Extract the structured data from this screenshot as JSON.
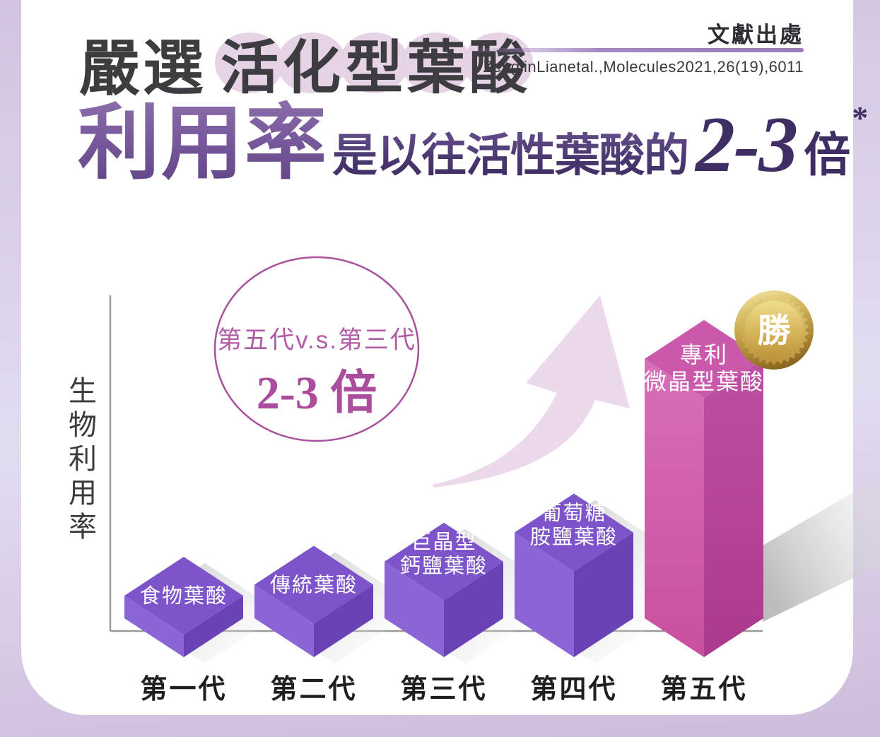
{
  "page": {
    "background_color": "#d2c4e1",
    "card_color": "#ffffff"
  },
  "header": {
    "prefix": "嚴選",
    "highlight_chars": [
      "活",
      "化",
      "型",
      "葉",
      "酸"
    ],
    "highlight_circle_color": "#e6d3e6",
    "headline": {
      "big": "利用率",
      "middle": "是以往活性葉酸的",
      "multiplier": "2-3",
      "unit": "倍",
      "footnote_mark": "*"
    }
  },
  "reference": {
    "label": "文獻出處",
    "citation": "ZenglinLianetal.,Molecules2021,26(19),6011",
    "line_color": "#9b7cba"
  },
  "callout": {
    "line1": "第五代v.s.第三代",
    "line2": "2-3 倍",
    "border_color": "#a8509e",
    "text_color": "#b25ba6"
  },
  "badge": {
    "label": "勝",
    "style": "gold-medal"
  },
  "chart_data": {
    "type": "bar",
    "style": "3d-isometric-cubes",
    "ylabel": "生物利用率",
    "xlabel": "",
    "categories": [
      "第一代",
      "第二代",
      "第三代",
      "第四代",
      "第五代"
    ],
    "bar_labels": [
      [
        "食物葉酸"
      ],
      [
        "傳統葉酸"
      ],
      [
        "巨晶型",
        "鈣鹽葉酸"
      ],
      [
        "葡萄糖",
        "胺鹽葉酸"
      ],
      [
        "專利",
        "微晶型葉酸"
      ]
    ],
    "relative_heights": [
      1.0,
      1.11,
      1.34,
      1.63,
      3.36
    ],
    "value_axis_note": "qualitative — no numeric ticks shown; heights normalized to 第一代 = 1",
    "highlight_index": 4,
    "annotation": "第五代 v.s. 第三代 = 2-3 倍",
    "colors": {
      "bar_top": "#7e54ca",
      "bar_left": "#8b65d6",
      "bar_right": "#6943b6",
      "highlight_top": "#ca58ab",
      "highlight_left": "#d569b6",
      "highlight_right": "#ba4aa0",
      "axis": "#9a9a9a",
      "arrow": "#ecd9ec",
      "shadow": "#bfbfbf"
    },
    "legend": null,
    "grid": false
  }
}
